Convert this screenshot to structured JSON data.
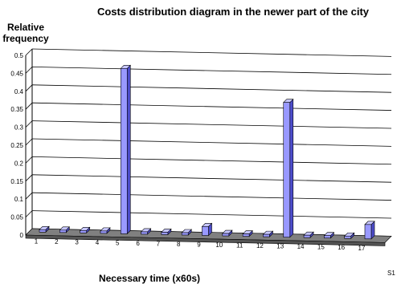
{
  "chart_data": {
    "type": "bar",
    "title": "Costs distribution diagram in the newer  part of the city",
    "ylabel": "Relative frequency",
    "ylabel_lines": [
      "Relative",
      "frequency"
    ],
    "xlabel": "Necessary time (x60s)",
    "categories": [
      "1",
      "2",
      "3",
      "4",
      "5",
      "6",
      "7",
      "8",
      "9",
      "10",
      "11",
      "12",
      "13",
      "14",
      "15",
      "16",
      "17"
    ],
    "series": [
      {
        "name": "S1",
        "values": [
          0,
          0,
          0,
          0,
          0.46,
          0,
          0,
          0,
          0.025,
          0,
          0,
          0,
          0.375,
          0,
          0,
          0,
          0.04
        ]
      }
    ],
    "y_ticks": [
      "0",
      "0.05",
      "0.1",
      "0.15",
      "0.2",
      "0.25",
      "0.3",
      "0.35",
      "0.4",
      "0.45",
      "0.5"
    ],
    "ylim": [
      0,
      0.5
    ],
    "grid": true,
    "style": "3d-column",
    "colors": {
      "bar_front": "#9999ff",
      "bar_side": "#4d4dcc",
      "bar_top": "#c6c6ff",
      "floor": "#808080",
      "grid": "#000000"
    }
  }
}
